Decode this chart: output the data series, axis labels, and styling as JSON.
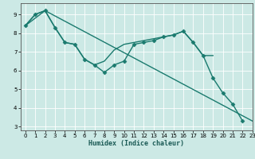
{
  "xlabel": "Humidex (Indice chaleur)",
  "ylabel": "",
  "background_color": "#cce9e5",
  "grid_color": "#ffffff",
  "line_color": "#1a7a6e",
  "xlim": [
    -0.5,
    23
  ],
  "ylim": [
    2.8,
    9.6
  ],
  "yticks": [
    3,
    4,
    5,
    6,
    7,
    8,
    9
  ],
  "xticks": [
    0,
    1,
    2,
    3,
    4,
    5,
    6,
    7,
    8,
    9,
    10,
    11,
    12,
    13,
    14,
    15,
    16,
    17,
    18,
    19,
    20,
    21,
    22,
    23
  ],
  "series": [
    {
      "x": [
        0,
        1,
        2,
        3,
        4,
        5,
        6,
        7,
        8,
        9,
        10,
        11,
        12,
        13,
        14,
        15,
        16,
        17,
        18,
        19,
        20,
        21,
        22
      ],
      "y": [
        8.4,
        9.0,
        9.2,
        8.3,
        7.5,
        7.4,
        6.6,
        6.3,
        5.9,
        6.3,
        6.5,
        7.4,
        7.5,
        7.6,
        7.8,
        7.9,
        8.1,
        7.5,
        6.8,
        5.6,
        4.8,
        4.2,
        3.3
      ],
      "marker": "D",
      "markersize": 2.5,
      "linewidth": 1.0
    },
    {
      "x": [
        0,
        1,
        2,
        3,
        4,
        5,
        6,
        7,
        8,
        9,
        10,
        11,
        12,
        13,
        14,
        15,
        16,
        17,
        18,
        19
      ],
      "y": [
        8.4,
        9.0,
        9.2,
        8.3,
        7.5,
        7.4,
        6.6,
        6.3,
        6.5,
        7.1,
        7.4,
        7.5,
        7.6,
        7.7,
        7.8,
        7.9,
        8.1,
        7.5,
        6.8,
        6.8
      ],
      "marker": null,
      "markersize": 0,
      "linewidth": 1.0
    },
    {
      "x": [
        0,
        2,
        23
      ],
      "y": [
        8.4,
        9.2,
        3.3
      ],
      "marker": null,
      "markersize": 0,
      "linewidth": 1.0
    }
  ]
}
